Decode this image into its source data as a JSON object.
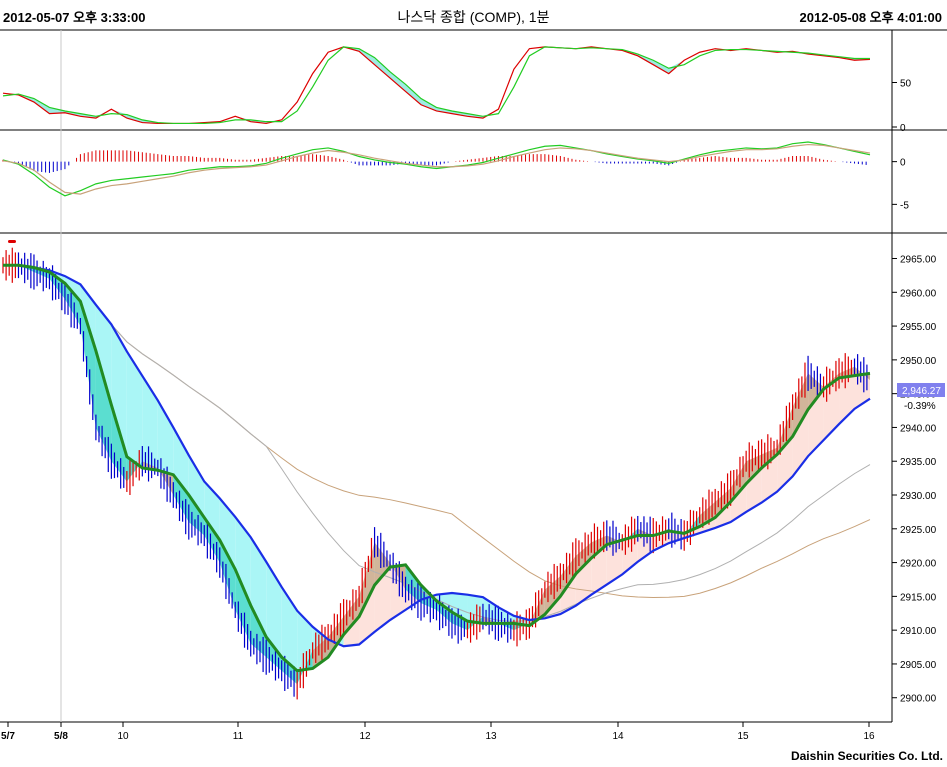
{
  "header": {
    "start_time": "2012-05-07 오후 3:33:00",
    "title": "나스닥 종합 (COMP), 1분",
    "end_time": "2012-05-08 오후 4:01:00"
  },
  "footer": {
    "copyright": "Daishin Securities Co. Ltd."
  },
  "colors": {
    "candle_up": "#dd0000",
    "candle_down": "#0000cc",
    "ma_short": "#228b22",
    "ma_mid": "#1a2ee6",
    "ma_long1": "#b0b0b0",
    "ma_long2": "#c8a27a",
    "fill_cyan": "#aaf6f6",
    "fill_teal": "#3ed8c8",
    "fill_pink": "#fde2dc",
    "fill_tan": "#c9a888",
    "last_price_box": "#8080ee"
  },
  "chart_data": [
    {
      "type": "line",
      "panel": "oscillator-1",
      "y_ticks": [
        0,
        50
      ],
      "ylim": [
        0,
        100
      ],
      "series": [
        {
          "values": [
            38,
            36,
            28,
            15,
            16,
            12,
            10,
            20,
            10,
            5,
            4,
            4,
            4,
            5,
            6,
            12,
            6,
            4,
            8,
            28,
            60,
            84,
            90,
            85,
            70,
            55,
            40,
            25,
            18,
            15,
            12,
            10,
            20,
            65,
            88,
            90,
            89,
            88,
            90,
            88,
            86,
            80,
            70,
            60,
            75,
            84,
            88,
            86,
            88,
            86,
            84,
            85,
            82,
            80,
            78,
            75,
            76
          ]
        },
        {
          "values": [
            35,
            37,
            32,
            22,
            18,
            15,
            12,
            15,
            14,
            8,
            5,
            4,
            4,
            4,
            5,
            8,
            8,
            6,
            6,
            18,
            45,
            75,
            90,
            88,
            78,
            62,
            48,
            32,
            22,
            18,
            15,
            12,
            15,
            45,
            80,
            90,
            89,
            88,
            89,
            88,
            87,
            82,
            75,
            66,
            70,
            80,
            86,
            87,
            87,
            86,
            85,
            84,
            83,
            81,
            79,
            77,
            77
          ]
        }
      ]
    },
    {
      "type": "bar",
      "panel": "oscillator-2",
      "y_ticks": [
        -5,
        0
      ],
      "ylim": [
        -8,
        3
      ],
      "series": [
        {
          "values": [
            0.2,
            -0.3,
            -1.5,
            -3.0,
            -4.0,
            -3.4,
            -2.6,
            -2.2,
            -2.0,
            -1.8,
            -1.6,
            -1.4,
            -1.0,
            -0.8,
            -0.6,
            -0.6,
            -0.5,
            -0.2,
            0.4,
            0.9,
            1.4,
            1.6,
            1.2,
            0.6,
            0.2,
            -0.1,
            -0.3,
            -0.6,
            -0.8,
            -0.6,
            -0.4,
            -0.1,
            0.4,
            0.9,
            1.4,
            1.8,
            1.9,
            1.6,
            1.3,
            0.9,
            0.6,
            0.3,
            0.1,
            -0.2,
            0.3,
            0.8,
            1.2,
            1.4,
            1.6,
            1.5,
            1.6,
            2.1,
            2.3,
            2.0,
            1.6,
            1.2,
            0.8
          ]
        },
        {
          "values": [
            0.1,
            -0.2,
            -1.0,
            -2.4,
            -3.6,
            -3.8,
            -3.2,
            -2.8,
            -2.6,
            -2.3,
            -2.0,
            -1.7,
            -1.3,
            -1.0,
            -0.8,
            -0.7,
            -0.6,
            -0.4,
            0.1,
            0.6,
            1.0,
            1.3,
            1.1,
            0.8,
            0.4,
            0.1,
            -0.2,
            -0.4,
            -0.6,
            -0.6,
            -0.5,
            -0.3,
            0.1,
            0.6,
            1.0,
            1.4,
            1.6,
            1.5,
            1.3,
            1.0,
            0.7,
            0.4,
            0.2,
            0.0,
            0.2,
            0.6,
            0.9,
            1.2,
            1.4,
            1.4,
            1.5,
            1.8,
            2.0,
            1.9,
            1.6,
            1.3,
            1.0
          ]
        }
      ]
    },
    {
      "type": "line",
      "panel": "price",
      "y_ticks": [
        2900,
        2905,
        2910,
        2915,
        2920,
        2925,
        2930,
        2935,
        2940,
        2945,
        2950,
        2955,
        2960,
        2965
      ],
      "ylim": [
        2897,
        2967
      ],
      "x_ticks": [
        "5/7",
        "5/8",
        "10",
        "11",
        "12",
        "13",
        "14",
        "15",
        "16"
      ],
      "last_price": "2,946.27",
      "change": "-0.39%",
      "series": [
        {
          "values": [
            2964,
            2964,
            2963,
            2962,
            2959,
            2955,
            2940,
            2935,
            2932,
            2935,
            2934,
            2930,
            2926,
            2924,
            2920,
            2913,
            2908,
            2906,
            2904,
            2902,
            2907,
            2909,
            2912,
            2915,
            2923,
            2920,
            2916,
            2914,
            2913,
            2911,
            2910,
            2912,
            2911,
            2910,
            2911,
            2916,
            2918,
            2921,
            2923,
            2924,
            2923,
            2925,
            2924,
            2925,
            2924,
            2927,
            2929,
            2931,
            2935,
            2936,
            2937,
            2943,
            2948,
            2946,
            2948,
            2949,
            2947
          ]
        }
      ]
    }
  ]
}
